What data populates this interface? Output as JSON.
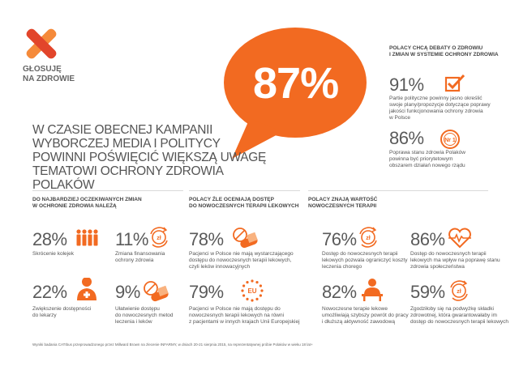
{
  "logo": {
    "line1": "GŁOSUJĘ",
    "line2": "NA ZDROWIE"
  },
  "headline": {
    "line1": "W CZASIE OBECNEJ KAMPANII",
    "line2": "WYBORCZEJ MEDIA I POLITYCY",
    "line3": "POWINNI POŚWIĘCIĆ WIĘKSZĄ UWAGĘ",
    "line4": "TEMATOWI OCHRONY ZDROWIA POLAKÓW"
  },
  "bubble": {
    "value": "87%",
    "color": "#f26a21"
  },
  "right_panel": {
    "heading_line1": "POLACY CHCĄ DEBATY O ZDROWIU",
    "heading_line2": "I ZMIAN W SYSTEMIE OCHRONY ZDROWIA",
    "item1": {
      "pct": "91%",
      "icon": "checkbox-icon",
      "l1": "Partie polityczne powinny jasno określić",
      "l2": "swoje plany/propozycje dotyczące poprawy",
      "l3": "jakości funkcjonowania ochrony zdrowia",
      "l4": "w Polsce"
    },
    "item2": {
      "pct": "86%",
      "icon": "number-one-badge-icon",
      "badge": "Nr 1",
      "l1": "Poprawa stanu zdrowia Polaków",
      "l2": "powinna być priorytetowym",
      "l3": "obszarem działań nowego rządu"
    }
  },
  "col1": {
    "heading_line1": "DO NAJBARDZIEJ OCZEKIWANYCH ZMIAN",
    "heading_line2": "W OCHRONIE ZDROWIA NALEŻĄ",
    "a": {
      "pct": "28%",
      "icon": "queue-people-icon",
      "l1": "Skrócenie kolejek"
    },
    "b": {
      "pct": "11%",
      "icon": "coin-arrows-icon",
      "badge": "zł",
      "l1": "Zmiana finansowania",
      "l2": "ochrony zdrowia"
    },
    "c": {
      "pct": "22%",
      "icon": "doctor-icon",
      "l1": "Zwiększenie dostępności",
      "l2": "do lekarzy"
    },
    "d": {
      "pct": "9%",
      "icon": "pills-icon",
      "l1": "Ułatwienie dostępu",
      "l2": "do nowoczesnych metod",
      "l3": "leczenia i leków"
    }
  },
  "col2": {
    "heading_line1": "POLACY ŹLE OCENIAJĄ DOSTĘP",
    "heading_line2": "DO NOWOCZESNYCH TERAPII LEKOWYCH",
    "a": {
      "pct": "78%",
      "icon": "pills-icon",
      "l1": "Pacjenci w Polsce nie mają wystarczającego",
      "l2": "dostępu do nowoczesnych terapii lekowych,",
      "l3": "czyli leków innowacyjnych"
    },
    "b": {
      "pct": "79%",
      "icon": "eu-stars-icon",
      "badge": "EU",
      "l1": "Pacjenci w Polsce nie mają dostępu do",
      "l2": "nowoczesnych terapii lekowych na równi",
      "l3": "z pacjentami w innych krajach Unii Europejskiej"
    }
  },
  "col3": {
    "heading_line1": "POLACY ZNAJĄ WARTOŚĆ",
    "heading_line2": "NOWOCZESNYCH TERAPII",
    "a": {
      "pct": "76%",
      "icon": "coin-arrows-icon",
      "badge": "zł",
      "l1": "Dostęp do nowoczesnych terapii",
      "l2": "lekowych pozwala ograniczyć koszty",
      "l3": "leczenia chorego"
    },
    "b": {
      "pct": "82%",
      "icon": "worker-desk-icon",
      "l1": "Nowoczesne terapie lekowe",
      "l2": "umożliwiają szybszy powrót do pracy",
      "l3": "i dłuższą aktywność zawodową"
    }
  },
  "col4": {
    "a": {
      "pct": "86%",
      "icon": "heart-pulse-icon",
      "l1": "Dostęp do nowoczesnych terapii",
      "l2": "lekowych ma wpływ na poprawę stanu",
      "l3": "zdrowia społeczeństwa"
    },
    "b": {
      "pct": "59%",
      "icon": "coin-arrows-icon",
      "badge": "zł",
      "l1": "Zgodziłoby się na podwyżkę składki",
      "l2": "zdrowotnej, która gwarantowałaby im",
      "l3": "dostęp do nowoczesnych terapii lekowych"
    }
  },
  "footnote": "Wyniki badania CATIbus przeprowadzonego przez Millward Brown na zlecenie INFARMY, w dniach 20-21 sierpnia 2015, na reprezentatywnej próbie Polaków w wieku 18 lat+",
  "accent": "#f26a21"
}
